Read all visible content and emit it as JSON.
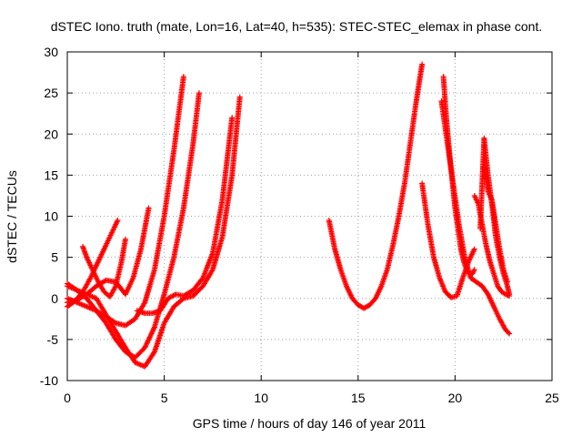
{
  "chart_data": {
    "type": "scatter",
    "title": "dSTEC Iono. truth (mate, Lon=16, Lat=40, h=535): STEC-STEC_elemax in phase cont.",
    "xlabel": "GPS time / hours of day 146 of year 2011",
    "ylabel": "dSTEC  / TECUs",
    "xlim": [
      0,
      25
    ],
    "ylim": [
      -10,
      30
    ],
    "xticks": [
      0,
      5,
      10,
      15,
      20,
      25
    ],
    "yticks": [
      -10,
      -5,
      0,
      5,
      10,
      15,
      20,
      25,
      30
    ],
    "xtick_labels": [
      "0",
      "5",
      "10",
      "15",
      "20",
      "25"
    ],
    "ytick_labels": [
      "-10",
      "-5",
      "0",
      "5",
      "10",
      "15",
      "20",
      "25",
      "30"
    ],
    "grid": true,
    "legend": false,
    "marker": "+",
    "series": [
      {
        "x": [
          0.0,
          0.3,
          0.6,
          0.9,
          1.2,
          1.5,
          1.8,
          2.1,
          2.4,
          2.6
        ],
        "y": [
          -1.0,
          -0.5,
          0.2,
          1.2,
          2.5,
          4.0,
          5.5,
          7.0,
          8.5,
          9.5
        ]
      },
      {
        "x": [
          0.8,
          1.0,
          1.3,
          1.6,
          1.9,
          2.2,
          2.5,
          2.8,
          3.0
        ],
        "y": [
          6.3,
          5.0,
          3.5,
          2.0,
          0.8,
          0.2,
          1.5,
          4.5,
          7.2
        ]
      },
      {
        "x": [
          0.0,
          0.5,
          1.0,
          1.5,
          2.0,
          2.5,
          3.0,
          3.4,
          3.8,
          4.2
        ],
        "y": [
          -0.5,
          -0.2,
          0.5,
          1.5,
          2.2,
          2.0,
          0.5,
          2.5,
          6.0,
          11.0
        ]
      },
      {
        "x": [
          0.0,
          0.5,
          1.0,
          1.5,
          2.0,
          2.5,
          3.0,
          3.5,
          4.0,
          4.5,
          5.0,
          5.5,
          6.0
        ],
        "y": [
          0.0,
          -0.5,
          -1.0,
          -1.5,
          -2.2,
          -3.0,
          -3.3,
          -2.5,
          -0.5,
          3.5,
          10.0,
          18.0,
          27.0
        ]
      },
      {
        "x": [
          0.0,
          0.5,
          1.0,
          1.5,
          2.0,
          2.5,
          3.0,
          3.5,
          4.0,
          4.5,
          5.0,
          5.5,
          6.0,
          6.5,
          6.8
        ],
        "y": [
          1.8,
          1.0,
          0.0,
          -1.5,
          -3.0,
          -5.0,
          -6.5,
          -7.2,
          -6.0,
          -3.5,
          0.5,
          5.0,
          11.0,
          19.0,
          25.0
        ]
      },
      {
        "x": [
          0.0,
          0.5,
          1.0,
          1.5,
          2.0,
          2.5,
          3.0,
          3.5,
          4.0,
          4.5,
          5.0,
          5.5,
          6.0,
          6.5,
          7.0,
          7.5,
          8.0,
          8.5,
          8.9
        ],
        "y": [
          1.5,
          1.0,
          0.5,
          0.0,
          -2.0,
          -4.0,
          -6.0,
          -7.8,
          -8.3,
          -6.5,
          -3.0,
          -1.0,
          0.0,
          0.3,
          1.5,
          3.5,
          7.5,
          15.0,
          24.5
        ]
      },
      {
        "x": [
          3.6,
          4.0,
          4.4,
          4.8,
          5.2,
          5.6,
          6.0,
          6.5,
          7.0,
          7.5,
          8.0,
          8.5
        ],
        "y": [
          -1.5,
          -1.8,
          -1.8,
          -1.5,
          0.0,
          0.5,
          0.3,
          1.0,
          2.5,
          5.5,
          12.0,
          22.0
        ]
      },
      {
        "x": [
          13.5,
          13.8,
          14.1,
          14.4,
          14.7,
          15.0,
          15.3,
          15.6,
          15.9,
          16.2,
          16.5,
          16.8,
          17.1,
          17.4,
          17.7,
          18.0,
          18.3
        ],
        "y": [
          9.5,
          6.0,
          3.5,
          1.5,
          0.0,
          -0.8,
          -1.2,
          -0.8,
          0.0,
          1.5,
          3.5,
          6.5,
          10.0,
          14.0,
          19.0,
          24.0,
          28.5
        ]
      },
      {
        "x": [
          18.3,
          18.6,
          18.9,
          19.2,
          19.5,
          19.8,
          20.1,
          20.4,
          20.7,
          21.0
        ],
        "y": [
          14.0,
          9.0,
          5.0,
          2.5,
          0.8,
          0.1,
          0.3,
          2.5,
          4.5,
          6.0
        ]
      },
      {
        "x": [
          19.3,
          19.6,
          19.9,
          20.2,
          20.5,
          20.8,
          21.1,
          21.4,
          21.7,
          22.0,
          22.3,
          22.6,
          22.8
        ],
        "y": [
          24.0,
          19.0,
          14.0,
          9.0,
          5.0,
          2.5,
          2.0,
          1.5,
          0.5,
          -1.0,
          -2.5,
          -3.8,
          -4.3
        ]
      },
      {
        "x": [
          19.4,
          19.55,
          19.7,
          19.85,
          20.0,
          20.15,
          20.3,
          20.45,
          20.6,
          20.75,
          20.9,
          21.0
        ],
        "y": [
          27.0,
          22.0,
          18.0,
          14.5,
          11.0,
          8.5,
          6.0,
          4.5,
          3.5,
          3.0,
          3.0,
          3.5
        ]
      },
      {
        "x": [
          21.0,
          21.2,
          21.4,
          21.6,
          21.8,
          22.0,
          22.2,
          22.4,
          22.6,
          22.8
        ],
        "y": [
          12.5,
          11.5,
          9.0,
          6.5,
          4.5,
          3.0,
          1.5,
          0.8,
          0.5,
          0.3
        ]
      },
      {
        "x": [
          21.3,
          21.5,
          21.7,
          21.9,
          22.1,
          22.3,
          22.5,
          22.7,
          22.8
        ],
        "y": [
          8.5,
          19.5,
          15.0,
          11.5,
          7.5,
          5.0,
          3.0,
          1.5,
          0.5
        ]
      },
      {
        "x": [
          21.5,
          21.7,
          21.9,
          22.1,
          22.3,
          22.5,
          22.7
        ],
        "y": [
          16.0,
          13.0,
          12.0,
          9.0,
          6.0,
          3.5,
          2.0
        ]
      }
    ]
  }
}
